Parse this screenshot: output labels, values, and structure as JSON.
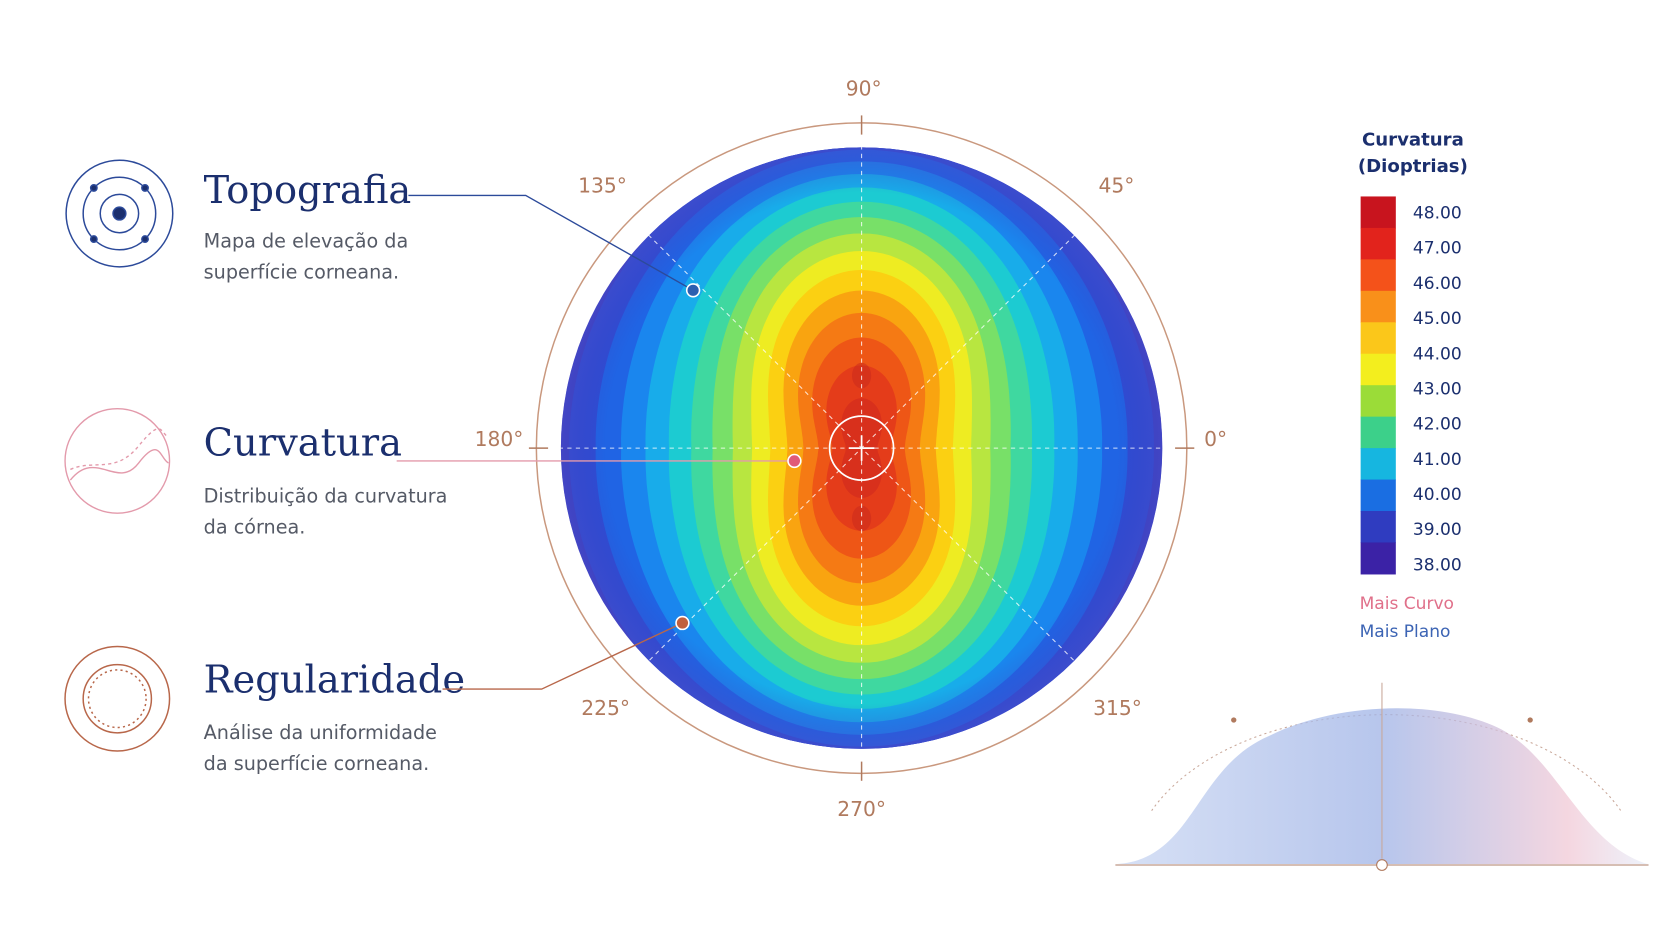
{
  "features": [
    {
      "title": "Topografia",
      "description": [
        "Mapa de elevação da",
        "superfície corneana."
      ]
    },
    {
      "title": "Curvatura",
      "description": [
        "Distribuição da curvatura",
        "da córnea."
      ]
    },
    {
      "title": "Regularidade",
      "description": [
        "Análise da uniformidade",
        "da superfície corneana."
      ]
    }
  ],
  "angle_labels": [
    "90°",
    "45°",
    "0°",
    "315°",
    "270°",
    "225°",
    "180°",
    "135°"
  ],
  "legend": {
    "title": [
      "Curvatura",
      "(Dioptrias)"
    ],
    "scale": [
      "48.00",
      "47.00",
      "46.00",
      "45.00",
      "44.00",
      "43.00",
      "42.00",
      "41.00",
      "40.00",
      "39.00",
      "38.00"
    ],
    "notes": [
      "Mais Curvo",
      "Mais Plano"
    ]
  }
}
